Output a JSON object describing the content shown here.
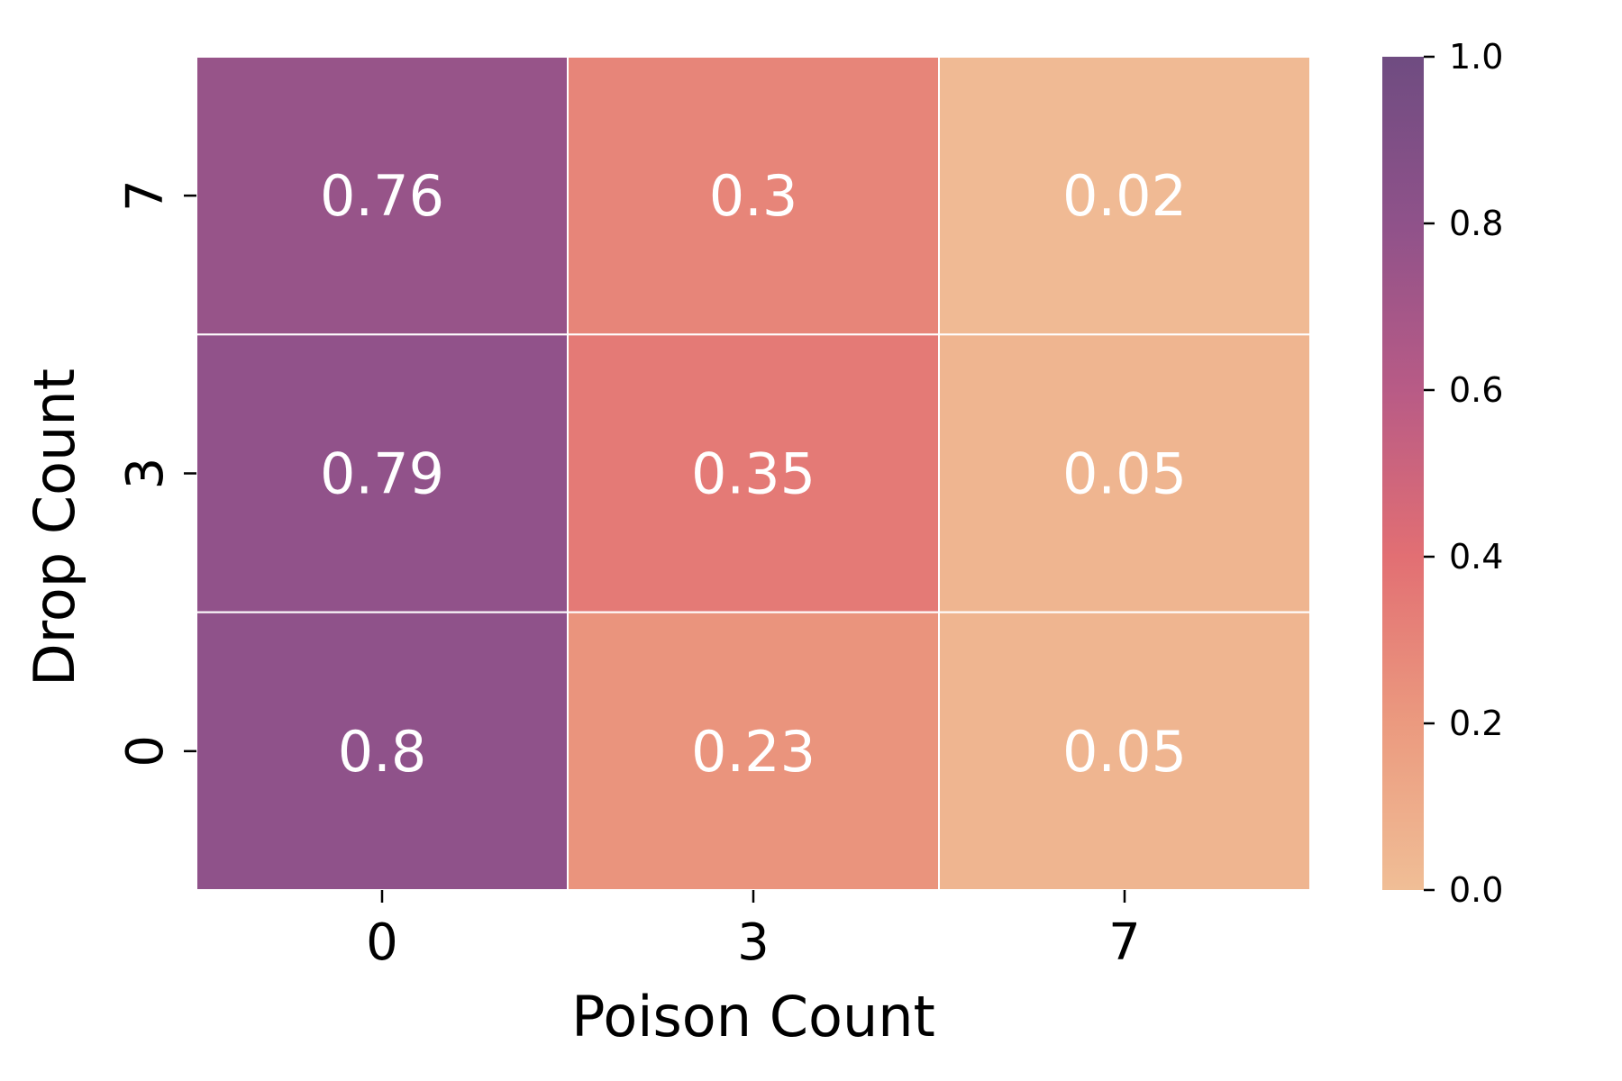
{
  "chart_data": {
    "type": "heatmap",
    "title": "",
    "xlabel": "Poison Count",
    "ylabel": "Drop Count",
    "x_categories": [
      "0",
      "3",
      "7"
    ],
    "y_categories": [
      "7",
      "3",
      "0"
    ],
    "values": [
      [
        0.76,
        0.3,
        0.02
      ],
      [
        0.79,
        0.35,
        0.05
      ],
      [
        0.8,
        0.23,
        0.05
      ]
    ],
    "value_labels": [
      [
        "0.76",
        "0.3",
        "0.02"
      ],
      [
        "0.79",
        "0.35",
        "0.05"
      ],
      [
        "0.8",
        "0.23",
        "0.05"
      ]
    ],
    "colorbar": {
      "min": 0.0,
      "max": 1.0,
      "ticks": [
        0.0,
        0.2,
        0.4,
        0.6,
        0.8,
        1.0
      ],
      "tick_labels": [
        "0.0",
        "0.2",
        "0.4",
        "0.6",
        "0.8",
        "1.0"
      ],
      "placement": "right"
    },
    "colormap": [
      "#f0be96",
      "#eb9a7f",
      "#e26f73",
      "#b85b86",
      "#8f528a",
      "#6f4c81"
    ],
    "grid": false
  }
}
